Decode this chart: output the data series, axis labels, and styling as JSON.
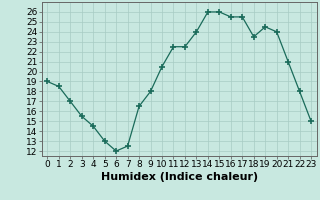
{
  "x": [
    0,
    1,
    2,
    3,
    4,
    5,
    6,
    7,
    8,
    9,
    10,
    11,
    12,
    13,
    14,
    15,
    16,
    17,
    18,
    19,
    20,
    21,
    22,
    23
  ],
  "y": [
    19.0,
    18.5,
    17.0,
    15.5,
    14.5,
    13.0,
    12.0,
    12.5,
    16.5,
    18.0,
    20.5,
    22.5,
    22.5,
    24.0,
    26.0,
    26.0,
    25.5,
    25.5,
    23.5,
    24.5,
    24.0,
    21.0,
    18.0,
    15.0
  ],
  "line_color": "#1a6b5a",
  "marker": "+",
  "marker_size": 4,
  "marker_color": "#1a6b5a",
  "bg_color": "#c8e8e0",
  "grid_color": "#a8ccc4",
  "xlabel": "Humidex (Indice chaleur)",
  "ylabel_ticks": [
    12,
    13,
    14,
    15,
    16,
    17,
    18,
    19,
    20,
    21,
    22,
    23,
    24,
    25,
    26
  ],
  "xlim": [
    -0.5,
    23.5
  ],
  "ylim": [
    11.5,
    27.0
  ],
  "xtick_labels": [
    "0",
    "1",
    "2",
    "3",
    "4",
    "5",
    "6",
    "7",
    "8",
    "9",
    "10",
    "11",
    "12",
    "13",
    "14",
    "15",
    "16",
    "17",
    "18",
    "19",
    "20",
    "21",
    "22",
    "23"
  ],
  "tick_fontsize": 6.5,
  "xlabel_fontsize": 8
}
